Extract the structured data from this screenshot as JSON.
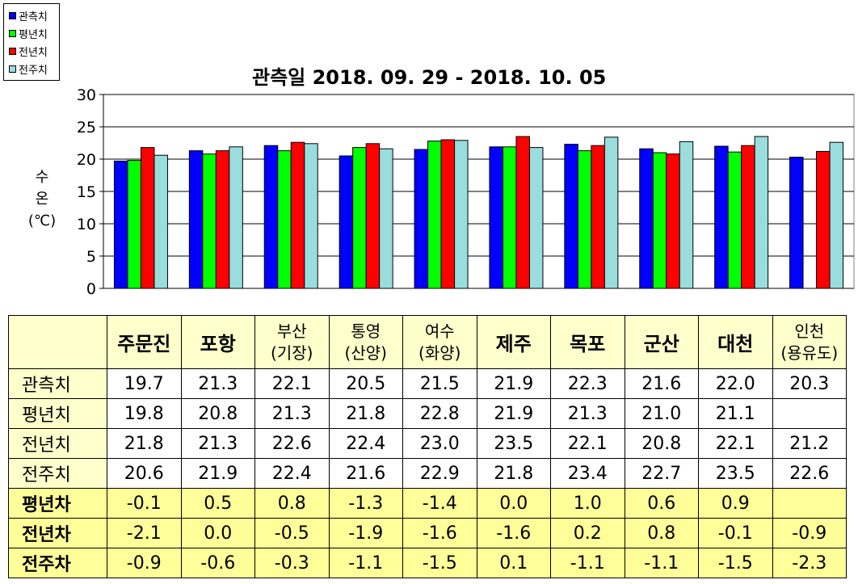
{
  "chart_data": {
    "type": "bar",
    "title": "관측일 2018. 09. 29 - 2018. 10. 05",
    "ylabel_lines": [
      "수",
      "온",
      "(℃)"
    ],
    "ylim": [
      0,
      30
    ],
    "yticks": [
      "0",
      "5",
      "10",
      "15",
      "20",
      "25",
      "30"
    ],
    "grid": true,
    "legend_position": "top-left",
    "categories": [
      "주문진",
      "포항",
      "부산(기장)",
      "통영(산양)",
      "여수(화양)",
      "제주",
      "목포",
      "군산",
      "대천",
      "인천(용유도)"
    ],
    "series": [
      {
        "name": "관측치",
        "color": "#0000ff",
        "values": [
          19.7,
          21.3,
          22.1,
          20.5,
          21.5,
          21.9,
          22.3,
          21.6,
          22.0,
          20.3
        ]
      },
      {
        "name": "평년치",
        "color": "#00ff00",
        "values": [
          19.8,
          20.8,
          21.3,
          21.8,
          22.8,
          21.9,
          21.3,
          21.0,
          21.1,
          null
        ]
      },
      {
        "name": "전년치",
        "color": "#ff0000",
        "values": [
          21.8,
          21.3,
          22.6,
          22.4,
          23.0,
          23.5,
          22.1,
          20.8,
          22.1,
          21.2
        ]
      },
      {
        "name": "전주치",
        "color": "#99dddd",
        "values": [
          20.6,
          21.9,
          22.4,
          21.6,
          22.9,
          21.8,
          23.4,
          22.7,
          23.5,
          22.6
        ]
      }
    ]
  },
  "table": {
    "stations": [
      {
        "line1": "주문진",
        "line2": ""
      },
      {
        "line1": "포항",
        "line2": ""
      },
      {
        "line1": "부산",
        "line2": "(기장)"
      },
      {
        "line1": "통영",
        "line2": "(산양)"
      },
      {
        "line1": "여수",
        "line2": "(화양)"
      },
      {
        "line1": "제주",
        "line2": ""
      },
      {
        "line1": "목포",
        "line2": ""
      },
      {
        "line1": "군산",
        "line2": ""
      },
      {
        "line1": "대천",
        "line2": ""
      },
      {
        "line1": "인천",
        "line2": "(용유도)"
      }
    ],
    "rows": [
      {
        "label": "관측치",
        "kind": "val",
        "values": [
          "19.7",
          "21.3",
          "22.1",
          "20.5",
          "21.5",
          "21.9",
          "22.3",
          "21.6",
          "22.0",
          "20.3"
        ]
      },
      {
        "label": "평년치",
        "kind": "val",
        "values": [
          "19.8",
          "20.8",
          "21.3",
          "21.8",
          "22.8",
          "21.9",
          "21.3",
          "21.0",
          "21.1",
          ""
        ]
      },
      {
        "label": "전년치",
        "kind": "val",
        "values": [
          "21.8",
          "21.3",
          "22.6",
          "22.4",
          "23.0",
          "23.5",
          "22.1",
          "20.8",
          "22.1",
          "21.2"
        ]
      },
      {
        "label": "전주치",
        "kind": "val",
        "values": [
          "20.6",
          "21.9",
          "22.4",
          "21.6",
          "22.9",
          "21.8",
          "23.4",
          "22.7",
          "23.5",
          "22.6"
        ]
      },
      {
        "label": "평년차",
        "kind": "diff",
        "values": [
          "-0.1",
          "0.5",
          "0.8",
          "-1.3",
          "-1.4",
          "0.0",
          "1.0",
          "0.6",
          "0.9",
          ""
        ]
      },
      {
        "label": "전년차",
        "kind": "diff",
        "values": [
          "-2.1",
          "0.0",
          "-0.5",
          "-1.9",
          "-1.6",
          "-1.6",
          "0.2",
          "0.8",
          "-0.1",
          "-0.9"
        ]
      },
      {
        "label": "전주차",
        "kind": "diff",
        "values": [
          "-0.9",
          "-0.6",
          "-0.3",
          "-1.1",
          "-1.5",
          "0.1",
          "-1.1",
          "-1.1",
          "-1.5",
          "-2.3"
        ]
      }
    ]
  }
}
